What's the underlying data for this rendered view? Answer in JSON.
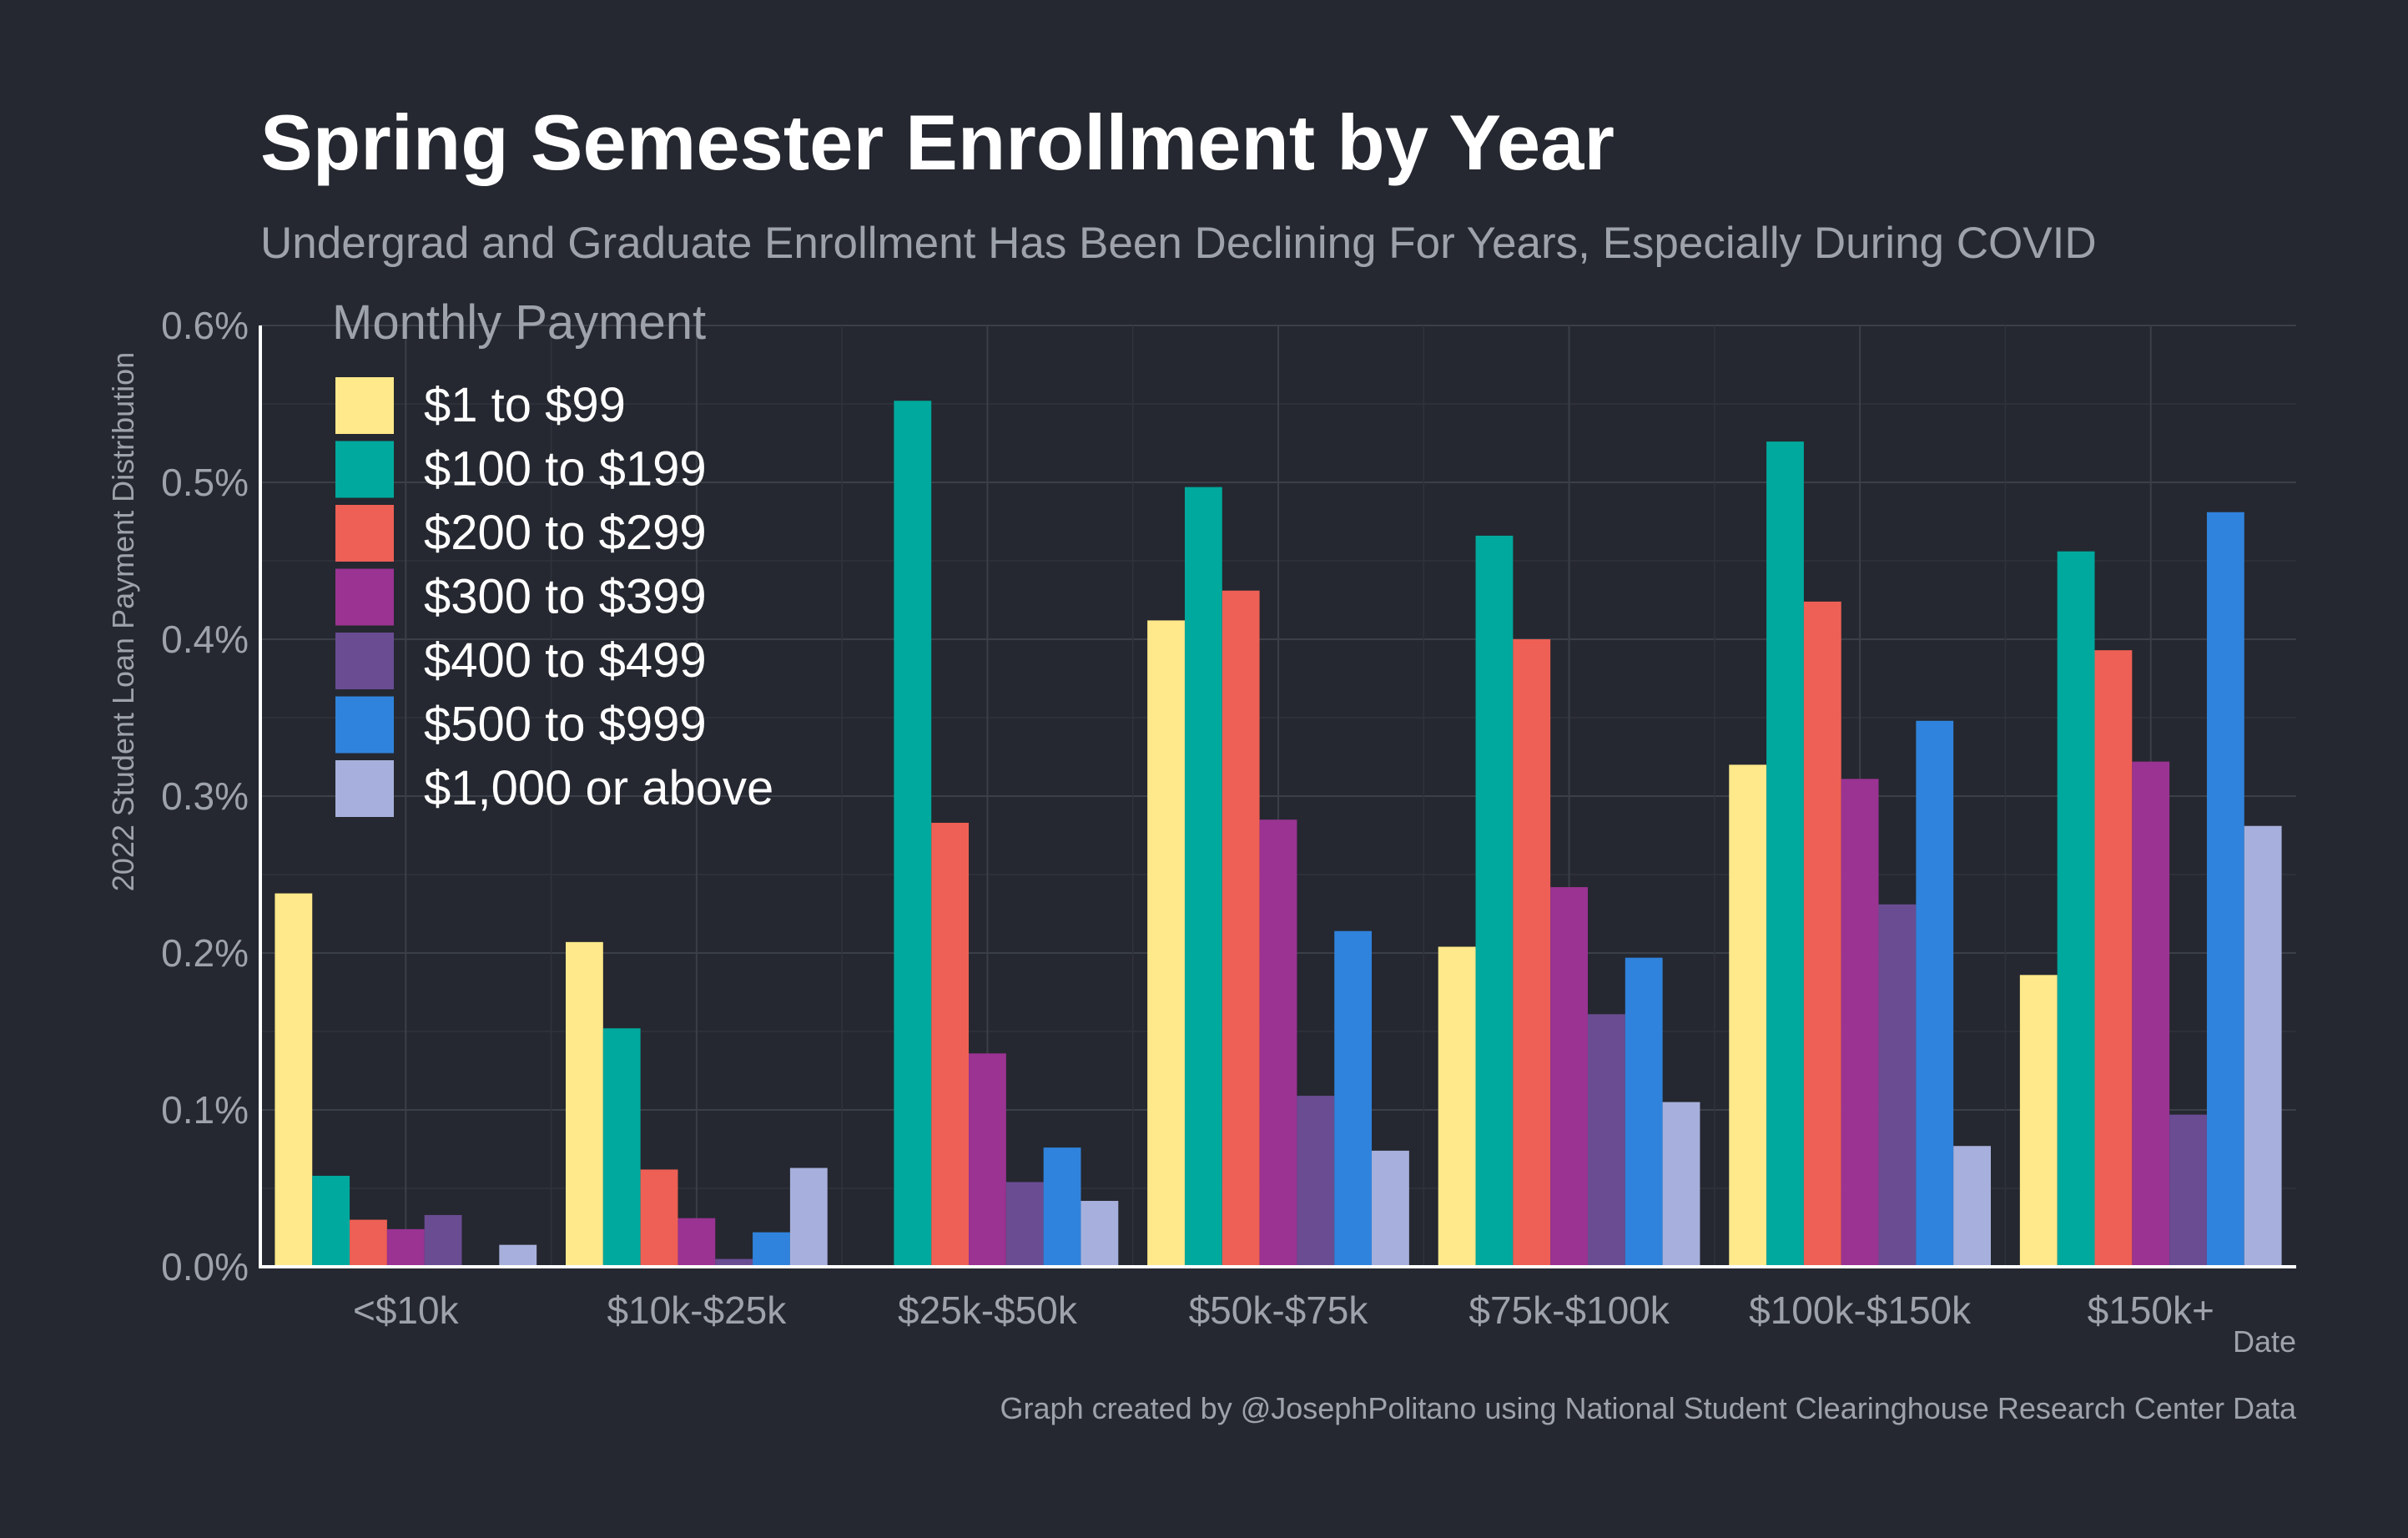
{
  "chart_data": {
    "type": "bar",
    "title": "Spring Semester Enrollment by Year",
    "subtitle": "Undergrad and Graduate Enrollment Has Been Declining For Years, Especially During COVID",
    "xlabel": "Date",
    "ylabel": "2022 Student Loan Payment Distribution",
    "caption": "Graph created by @JosephPolitano using National Student Clearinghouse Research Center Data",
    "legend_title": "Monthly Payment",
    "legend_position": "top-left",
    "grid": true,
    "ylim": [
      0,
      0.006
    ],
    "yticks": [
      0,
      0.001,
      0.002,
      0.003,
      0.004,
      0.005,
      0.006
    ],
    "ytick_labels": [
      "0.0%",
      "0.1%",
      "0.2%",
      "0.3%",
      "0.4%",
      "0.5%",
      "0.6%"
    ],
    "categories": [
      "<$10k",
      "$10k-$25k",
      "$25k-$50k",
      "$50k-$75k",
      "$75k-$100k",
      "$100k-$150k",
      "$150k+"
    ],
    "series": [
      {
        "name": "$1 to $99",
        "color": "#FFE98A",
        "values": [
          0.00238,
          0.00207,
          0.0,
          0.00412,
          0.00204,
          0.0032,
          0.00186
        ]
      },
      {
        "name": "$100 to $199",
        "color": "#00A99D",
        "values": [
          0.00058,
          0.00152,
          0.00552,
          0.00497,
          0.00466,
          0.00526,
          0.00456
        ]
      },
      {
        "name": "$200 to $299",
        "color": "#EE6055",
        "values": [
          0.0003,
          0.00062,
          0.00283,
          0.00431,
          0.004,
          0.00424,
          0.00393
        ]
      },
      {
        "name": "$300 to $399",
        "color": "#9A3392",
        "values": [
          0.00024,
          0.00031,
          0.00136,
          0.00285,
          0.00242,
          0.00311,
          0.00322
        ]
      },
      {
        "name": "$400 to $499",
        "color": "#6A4C93",
        "values": [
          0.00033,
          5e-05,
          0.00054,
          0.00109,
          0.00161,
          0.00231,
          0.00097
        ]
      },
      {
        "name": "$500 to $999",
        "color": "#3083DC",
        "values": [
          1e-05,
          0.00022,
          0.00076,
          0.00214,
          0.00197,
          0.00348,
          0.00481
        ]
      },
      {
        "name": "$1,000 or above",
        "color": "#A7B0DC",
        "values": [
          0.00014,
          0.00063,
          0.00042,
          0.00074,
          0.00105,
          0.00077,
          0.00281
        ]
      }
    ]
  }
}
